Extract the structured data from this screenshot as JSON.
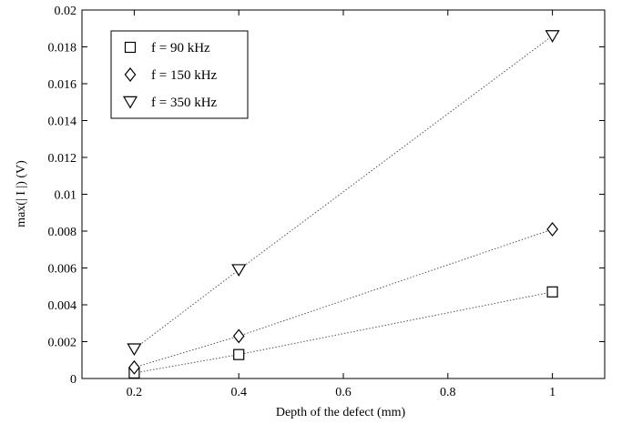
{
  "chart_data": {
    "type": "scatter",
    "title": "",
    "xlabel": "Depth of the defect (mm)",
    "ylabel": "max(| I |) (V)",
    "xlim": [
      0.1,
      1.1
    ],
    "ylim": [
      0,
      0.02
    ],
    "grid": false,
    "legend_position": "top-left",
    "x_ticks": [
      "0.2",
      "0.4",
      "0.6",
      "0.8",
      "1"
    ],
    "y_ticks": [
      "0",
      "0.002",
      "0.004",
      "0.006",
      "0.008",
      "0.01",
      "0.012",
      "0.014",
      "0.016",
      "0.018",
      "0.02"
    ],
    "x": [
      0.2,
      0.4,
      1.0
    ],
    "series": [
      {
        "name": "f = 90 kHz",
        "marker": "square",
        "values": [
          0.0003,
          0.0013,
          0.0047
        ]
      },
      {
        "name": "f = 150 kHz",
        "marker": "diamond",
        "values": [
          0.0006,
          0.0023,
          0.0081
        ]
      },
      {
        "name": "f = 350 kHz",
        "marker": "triangle-down",
        "values": [
          0.0016,
          0.0059,
          0.0186
        ]
      }
    ],
    "line_style": "dotted",
    "colors": {
      "marker": "#000000",
      "line": "#555555",
      "axis": "#000000"
    }
  }
}
